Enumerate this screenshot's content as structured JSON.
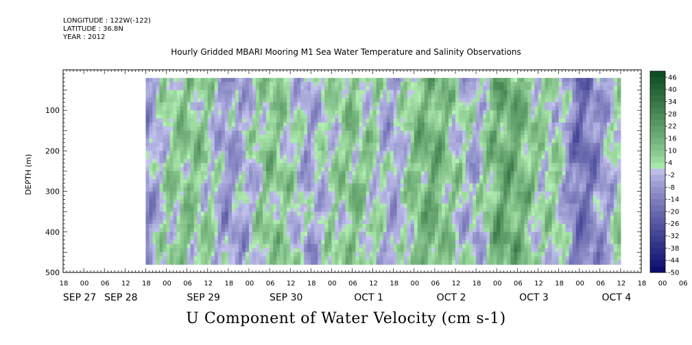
{
  "header": {
    "longitude": "LONGITUDE : 122W(-122)",
    "latitude": "LATITUDE : 36.8N",
    "year": "YEAR : 2012",
    "title": "Hourly Gridded MBARI Mooring M1 Sea Water Temperature and Salinity Observations"
  },
  "footer": {
    "variable_title": "U Component of Water Velocity (cm s-1)"
  },
  "chart_data": {
    "type": "heatmap",
    "title": "Hourly Gridded MBARI Mooring M1 Sea Water Temperature and Salinity Observations",
    "xlabel": "",
    "ylabel": "DEPTH (m)",
    "y_inverted": true,
    "ylim": [
      500,
      0
    ],
    "y_ticks": [
      100,
      200,
      300,
      400,
      500
    ],
    "x_start_hours_label": "SEP 27 18",
    "x_hour_labels": [
      "18",
      "00",
      "06",
      "12",
      "18",
      "00",
      "06",
      "12",
      "18",
      "00",
      "06",
      "12",
      "18",
      "00",
      "06",
      "12",
      "18",
      "00",
      "06",
      "12",
      "18",
      "00",
      "06",
      "12",
      "18",
      "00",
      "06",
      "12",
      "18",
      "00",
      "06",
      "12",
      "18",
      "00",
      "06",
      "12",
      "18",
      "00",
      "06",
      "12",
      "18",
      "00",
      "06",
      "12",
      "18"
    ],
    "x_day_labels": [
      {
        "label": "SEP 27",
        "hour_index": 1
      },
      {
        "label": "SEP 28",
        "hour_index": 3
      },
      {
        "label": "SEP 29",
        "hour_index": 7
      },
      {
        "label": "SEP 30",
        "hour_index": 11
      },
      {
        "label": "OCT  1",
        "hour_index": 15
      },
      {
        "label": "OCT  2",
        "hour_index": 19
      },
      {
        "label": "OCT  3",
        "hour_index": 23
      },
      {
        "label": "OCT  4",
        "hour_index": 27
      }
    ],
    "depth_range": [
      20,
      480
    ],
    "data_start_hour": 24,
    "data_end_hour": 162,
    "colorbar": {
      "labels": [
        "46",
        "40",
        "34",
        "28",
        "22",
        "16",
        "10",
        "4",
        "-2",
        "-8",
        "-14",
        "-20",
        "-26",
        "-32",
        "-38",
        "-44",
        "-50"
      ],
      "min": -50,
      "max": 49,
      "step": 3,
      "negative_color_light": "#c8c8f0",
      "negative_color_dark": "#0a0a6e",
      "positive_color_light": "#b4f0b4",
      "positive_color_dark": "#0a4a1e"
    },
    "field_profile": {
      "description_values_cm_s": [
        {
          "hour": 24,
          "mean": -10
        },
        {
          "hour": 30,
          "mean": 4
        },
        {
          "hour": 36,
          "mean": 10
        },
        {
          "hour": 42,
          "mean": 4
        },
        {
          "hour": 48,
          "mean": -8
        },
        {
          "hour": 54,
          "mean": -2
        },
        {
          "hour": 60,
          "mean": 10
        },
        {
          "hour": 66,
          "mean": 4
        },
        {
          "hour": 72,
          "mean": -6
        },
        {
          "hour": 78,
          "mean": 4
        },
        {
          "hour": 84,
          "mean": 10
        },
        {
          "hour": 90,
          "mean": 4
        },
        {
          "hour": 96,
          "mean": -6
        },
        {
          "hour": 102,
          "mean": 10
        },
        {
          "hour": 108,
          "mean": 16
        },
        {
          "hour": 114,
          "mean": 4
        },
        {
          "hour": 120,
          "mean": -4
        },
        {
          "hour": 126,
          "mean": 16
        },
        {
          "hour": 132,
          "mean": 16
        },
        {
          "hour": 138,
          "mean": 4
        },
        {
          "hour": 144,
          "mean": 4
        },
        {
          "hour": 150,
          "mean": -20
        },
        {
          "hour": 156,
          "mean": -8
        },
        {
          "hour": 162,
          "mean": 4
        }
      ]
    }
  }
}
